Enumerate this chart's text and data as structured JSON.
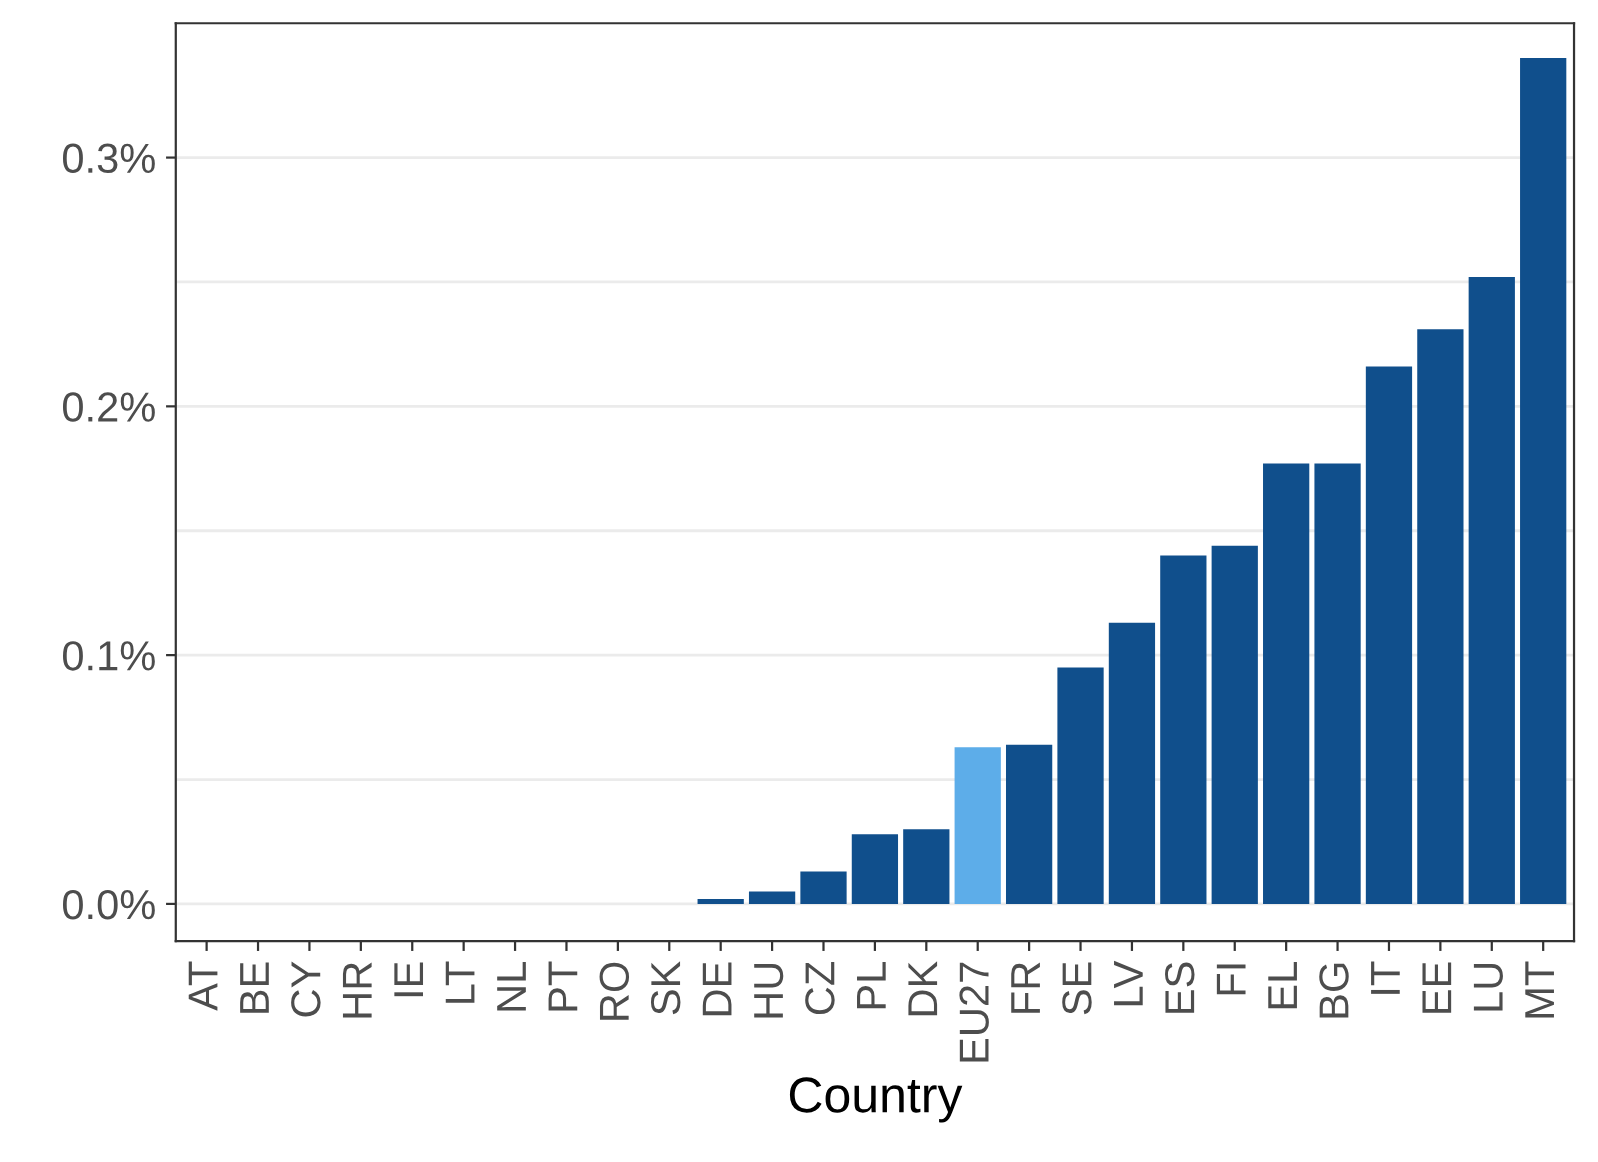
{
  "chart_data": {
    "type": "bar",
    "xlabel": "Country",
    "categories": [
      "AT",
      "BE",
      "CY",
      "HR",
      "IE",
      "LT",
      "NL",
      "PT",
      "RO",
      "SK",
      "DE",
      "HU",
      "CZ",
      "PL",
      "DK",
      "EU27",
      "FR",
      "SE",
      "LV",
      "ES",
      "FI",
      "EL",
      "BG",
      "IT",
      "EE",
      "LU",
      "MT"
    ],
    "values": [
      0,
      0,
      0,
      0,
      0,
      0,
      0,
      0,
      0,
      0,
      0.002,
      0.005,
      0.013,
      0.028,
      0.03,
      0.063,
      0.064,
      0.095,
      0.113,
      0.14,
      0.144,
      0.177,
      0.177,
      0.216,
      0.231,
      0.252,
      0.34
    ],
    "colors": [
      "#104f8c",
      "#104f8c",
      "#104f8c",
      "#104f8c",
      "#104f8c",
      "#104f8c",
      "#104f8c",
      "#104f8c",
      "#104f8c",
      "#104f8c",
      "#104f8c",
      "#104f8c",
      "#104f8c",
      "#104f8c",
      "#104f8c",
      "#5dade9",
      "#104f8c",
      "#104f8c",
      "#104f8c",
      "#104f8c",
      "#104f8c",
      "#104f8c",
      "#104f8c",
      "#104f8c",
      "#104f8c",
      "#104f8c",
      "#104f8c"
    ],
    "ylim": [
      -0.015,
      0.354
    ],
    "yticks": [
      {
        "value": 0,
        "label": "0.0%"
      },
      {
        "value": 0.05,
        "label": null
      },
      {
        "value": 0.1,
        "label": "0.1%"
      },
      {
        "value": 0.15,
        "label": null
      },
      {
        "value": 0.2,
        "label": "0.2%"
      },
      {
        "value": 0.25,
        "label": null
      },
      {
        "value": 0.3,
        "label": "0.3%"
      }
    ],
    "grid": "y"
  }
}
